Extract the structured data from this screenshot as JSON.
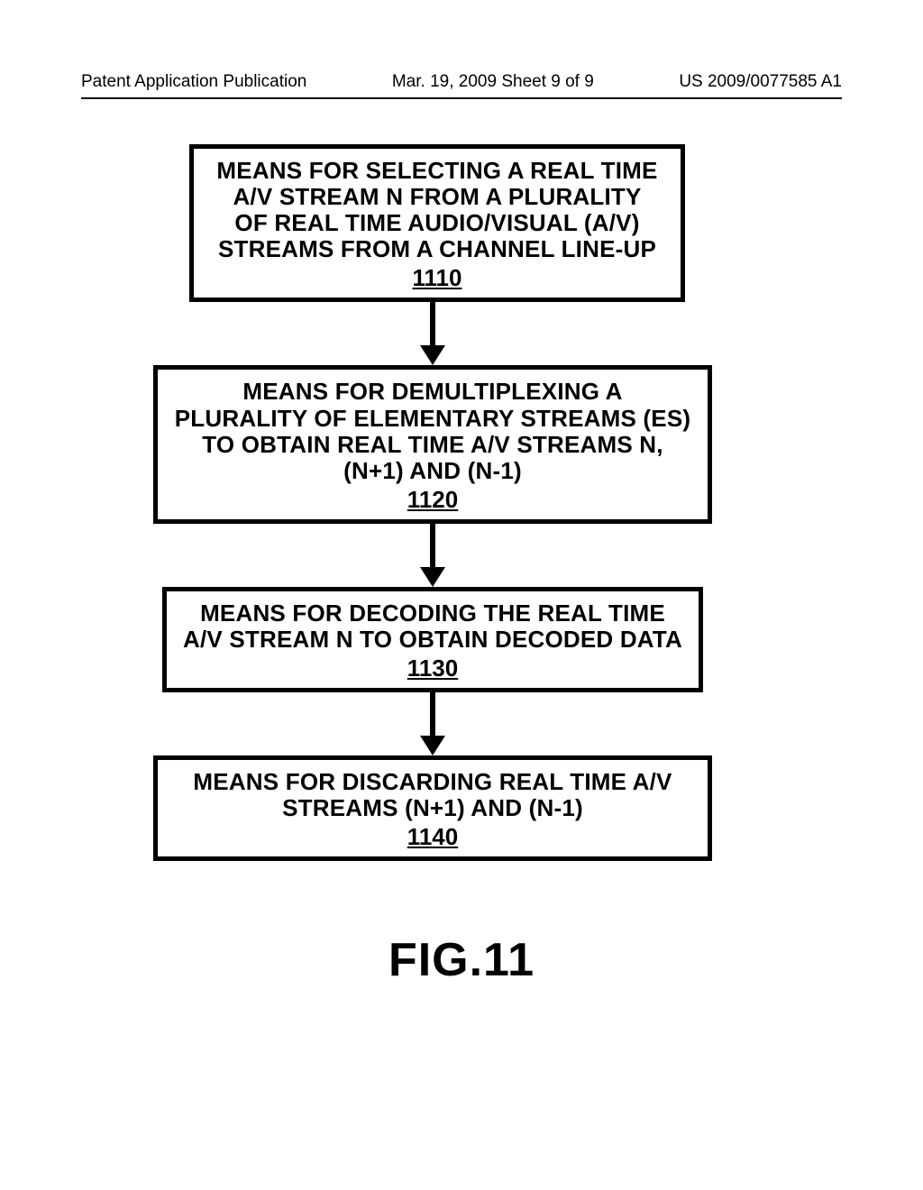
{
  "header": {
    "left": "Patent Application Publication",
    "center": "Mar. 19, 2009  Sheet 9 of 9",
    "right": "US 2009/0077585 A1"
  },
  "flowchart": {
    "boxes": [
      {
        "text": "MEANS FOR SELECTING A REAL TIME\nA/V STREAM N FROM A PLURALITY\nOF REAL TIME AUDIO/VISUAL (A/V)\nSTREAMS FROM A CHANNEL LINE-UP",
        "ref": "1110"
      },
      {
        "text": "MEANS FOR DEMULTIPLEXING A\nPLURALITY OF ELEMENTARY STREAMS (ES)\nTO OBTAIN REAL TIME A/V STREAMS N,\n(N+1) AND (N-1)",
        "ref": "1120"
      },
      {
        "text": "MEANS FOR DECODING THE REAL TIME\nA/V STREAM N TO OBTAIN DECODED DATA",
        "ref": "1130"
      },
      {
        "text": "MEANS FOR DISCARDING REAL TIME A/V\nSTREAMS (N+1) AND (N-1)",
        "ref": "1140"
      }
    ],
    "arrow_color": "#000000",
    "box_border_color": "#000000",
    "box_border_width": 5
  },
  "figure_label": "FIG.11",
  "colors": {
    "background": "#ffffff",
    "text": "#000000"
  }
}
